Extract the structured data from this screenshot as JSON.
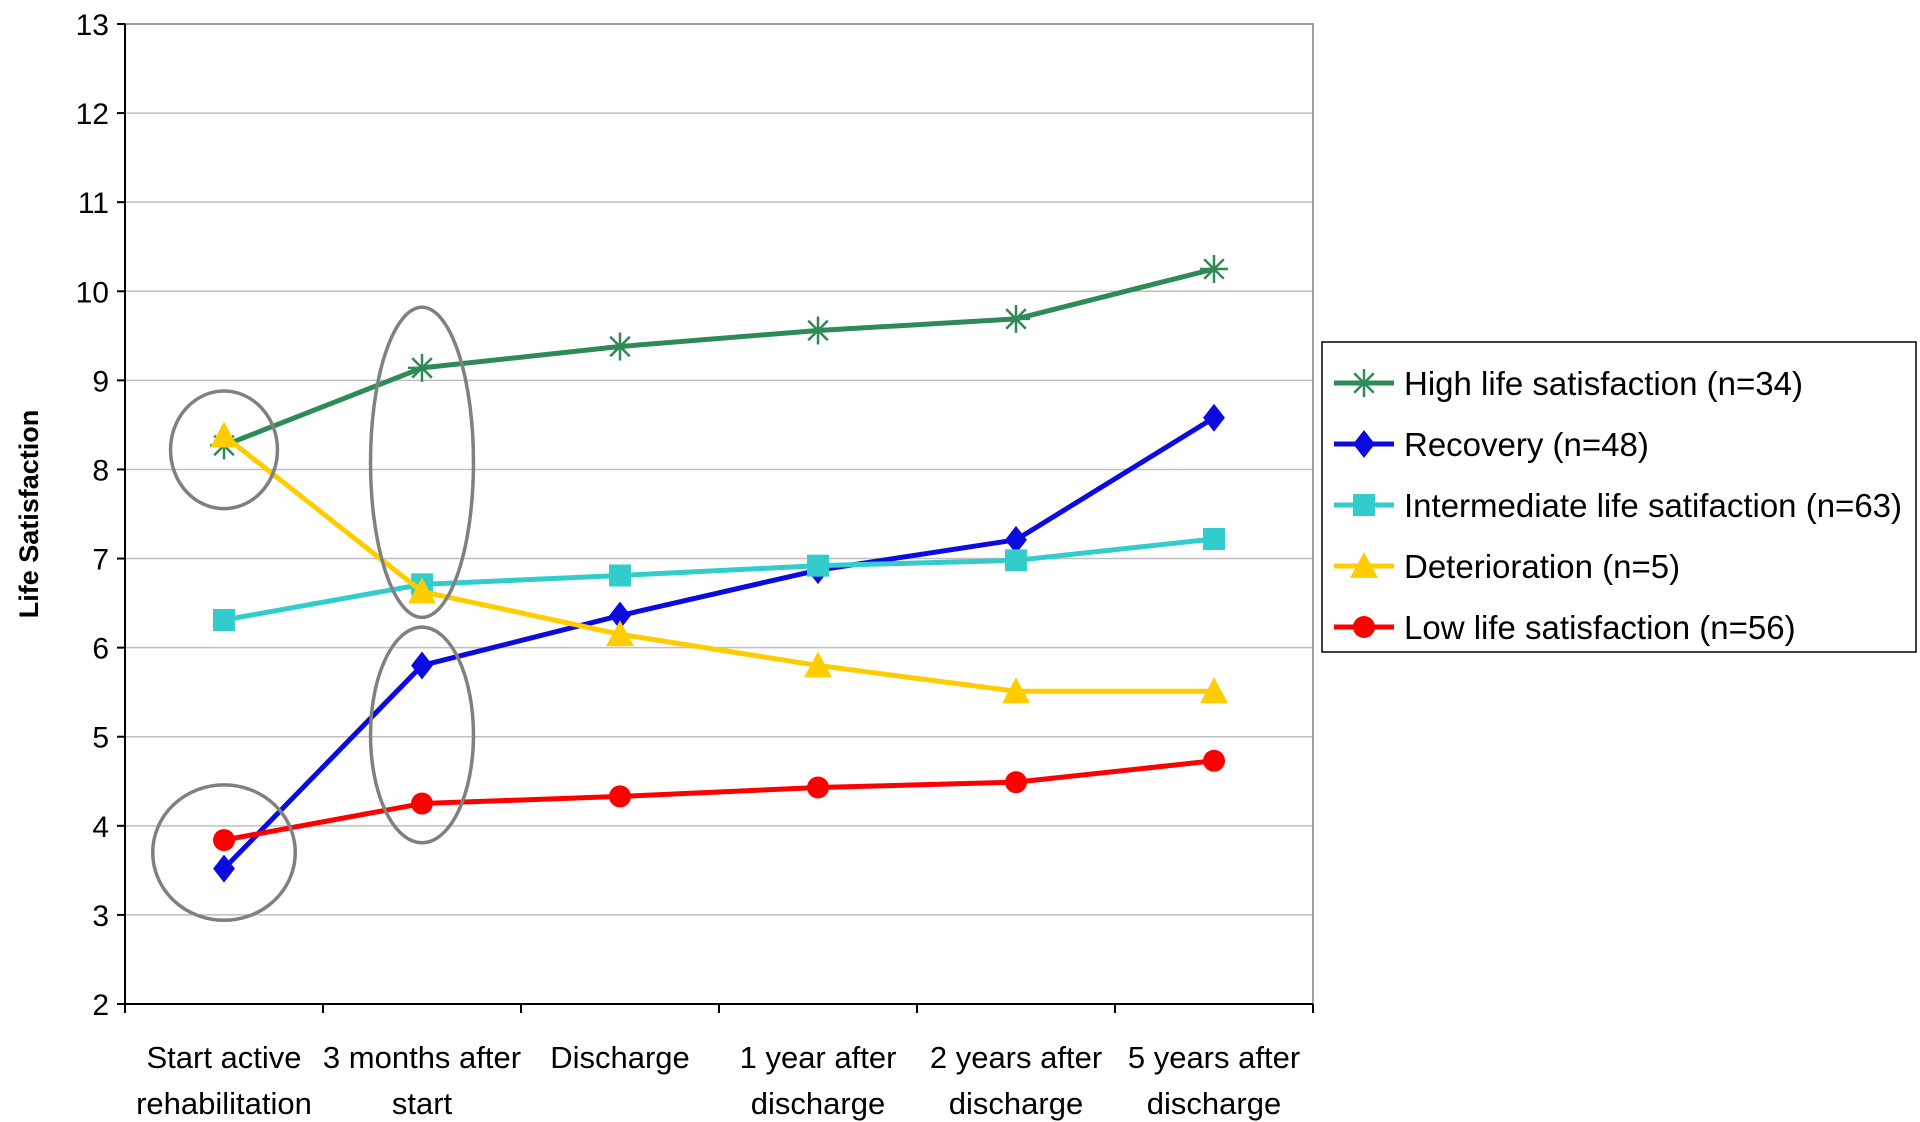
{
  "chart_data": {
    "type": "line",
    "title": "",
    "xlabel": "",
    "ylabel": "Life Satisfaction",
    "ylim": [
      2,
      13
    ],
    "yticks": [
      "2",
      "3",
      "4",
      "5",
      "6",
      "7",
      "8",
      "9",
      "10",
      "11",
      "12",
      "13"
    ],
    "grid": "horizontal",
    "legend_position": "right",
    "categories": [
      [
        "Start active",
        "rehabilitation"
      ],
      [
        "3 months after",
        "start"
      ],
      [
        "Discharge"
      ],
      [
        "1 year after",
        "discharge"
      ],
      [
        "2 years after",
        "discharge"
      ],
      [
        "5 years after",
        "discharge"
      ]
    ],
    "series": [
      {
        "name": "High life satisfaction (n=34)",
        "color": "#2E8B57",
        "marker": "asterisk",
        "values": [
          8.27,
          9.14,
          9.38,
          9.56,
          9.69,
          10.25
        ]
      },
      {
        "name": "Recovery (n=48)",
        "color": "#0B0BE0",
        "marker": "diamond",
        "values": [
          3.52,
          5.8,
          6.36,
          6.87,
          7.21,
          8.58
        ]
      },
      {
        "name": "Intermediate life satifaction (n=63)",
        "color": "#33CCCC",
        "marker": "square",
        "values": [
          6.31,
          6.71,
          6.81,
          6.92,
          6.98,
          7.22
        ]
      },
      {
        "name": "Deterioration (n=5)",
        "color": "#FFCC00",
        "marker": "triangle",
        "values": [
          8.38,
          6.63,
          6.15,
          5.8,
          5.51,
          5.51
        ]
      },
      {
        "name": "Low life satisfaction (n=56)",
        "color": "#FF0000",
        "marker": "circle",
        "values": [
          3.84,
          4.25,
          4.33,
          4.43,
          4.49,
          4.73
        ]
      }
    ],
    "annotations": [
      {
        "shape": "ellipse",
        "category_index": 0,
        "y_center": 8.22,
        "y_half_span": 0.66,
        "x_half_span": 0.27
      },
      {
        "shape": "ellipse",
        "category_index": 0,
        "y_center": 3.7,
        "y_half_span": 0.76,
        "x_half_span": 0.36
      },
      {
        "shape": "ellipse",
        "category_index": 1,
        "y_center": 8.08,
        "y_half_span": 1.74,
        "x_half_span": 0.26
      },
      {
        "shape": "ellipse",
        "category_index": 1,
        "y_center": 5.02,
        "y_half_span": 1.21,
        "x_half_span": 0.26
      }
    ],
    "annotation_color": "#808080"
  }
}
